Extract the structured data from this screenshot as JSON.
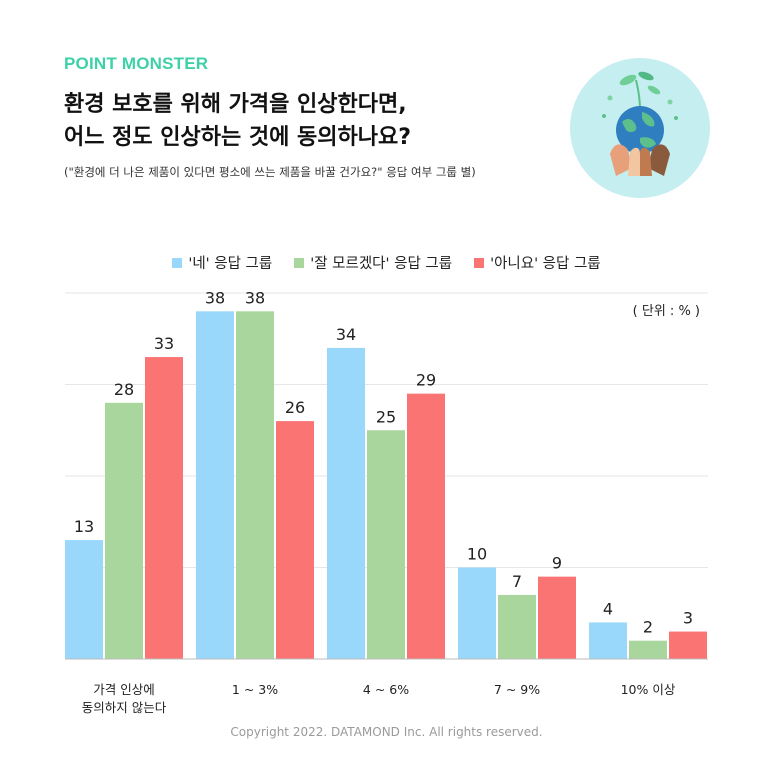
{
  "brand": "POINT MONSTER",
  "title_lines": [
    "환경 보호를 위해 가격을 인상한다면,",
    "어느 정도 인상하는 것에 동의하나요?"
  ],
  "subtitle": "(\"환경에 더 나은 제품이 있다면  평소에 쓰는 제품을 바꿀 건가요?\" 응답 여부 그룹 별)",
  "unit_label": "( 단위 : % )",
  "copyright": "Copyright 2022. DATAMOND Inc. All rights reserved.",
  "badge_icon": "earth-in-hands-icon",
  "colors": {
    "brand": "#3ed1a8",
    "yes": "#99d8fb",
    "unsure": "#a9d69c",
    "no": "#fb7474",
    "grid": "#e6e6e6"
  },
  "chart_data": {
    "type": "bar",
    "categories": [
      [
        "가격 인상에",
        "동의하지 않는다"
      ],
      [
        "1 ~ 3%"
      ],
      [
        "4 ~ 6%"
      ],
      [
        "7 ~ 9%"
      ],
      [
        "10% 이상"
      ]
    ],
    "series": [
      {
        "name": "'네' 응답 그룹",
        "values": [
          13,
          38,
          34,
          10,
          4
        ],
        "color": "#99d8fb"
      },
      {
        "name": "'잘 모르겠다' 응답 그룹",
        "values": [
          28,
          38,
          25,
          7,
          2
        ],
        "color": "#a9d69c"
      },
      {
        "name": "'아니요' 응답 그룹",
        "values": [
          33,
          26,
          29,
          9,
          3
        ],
        "color": "#fb7474"
      }
    ],
    "ylim": [
      0,
      40
    ],
    "grid": true,
    "legend_position": "top-center"
  }
}
